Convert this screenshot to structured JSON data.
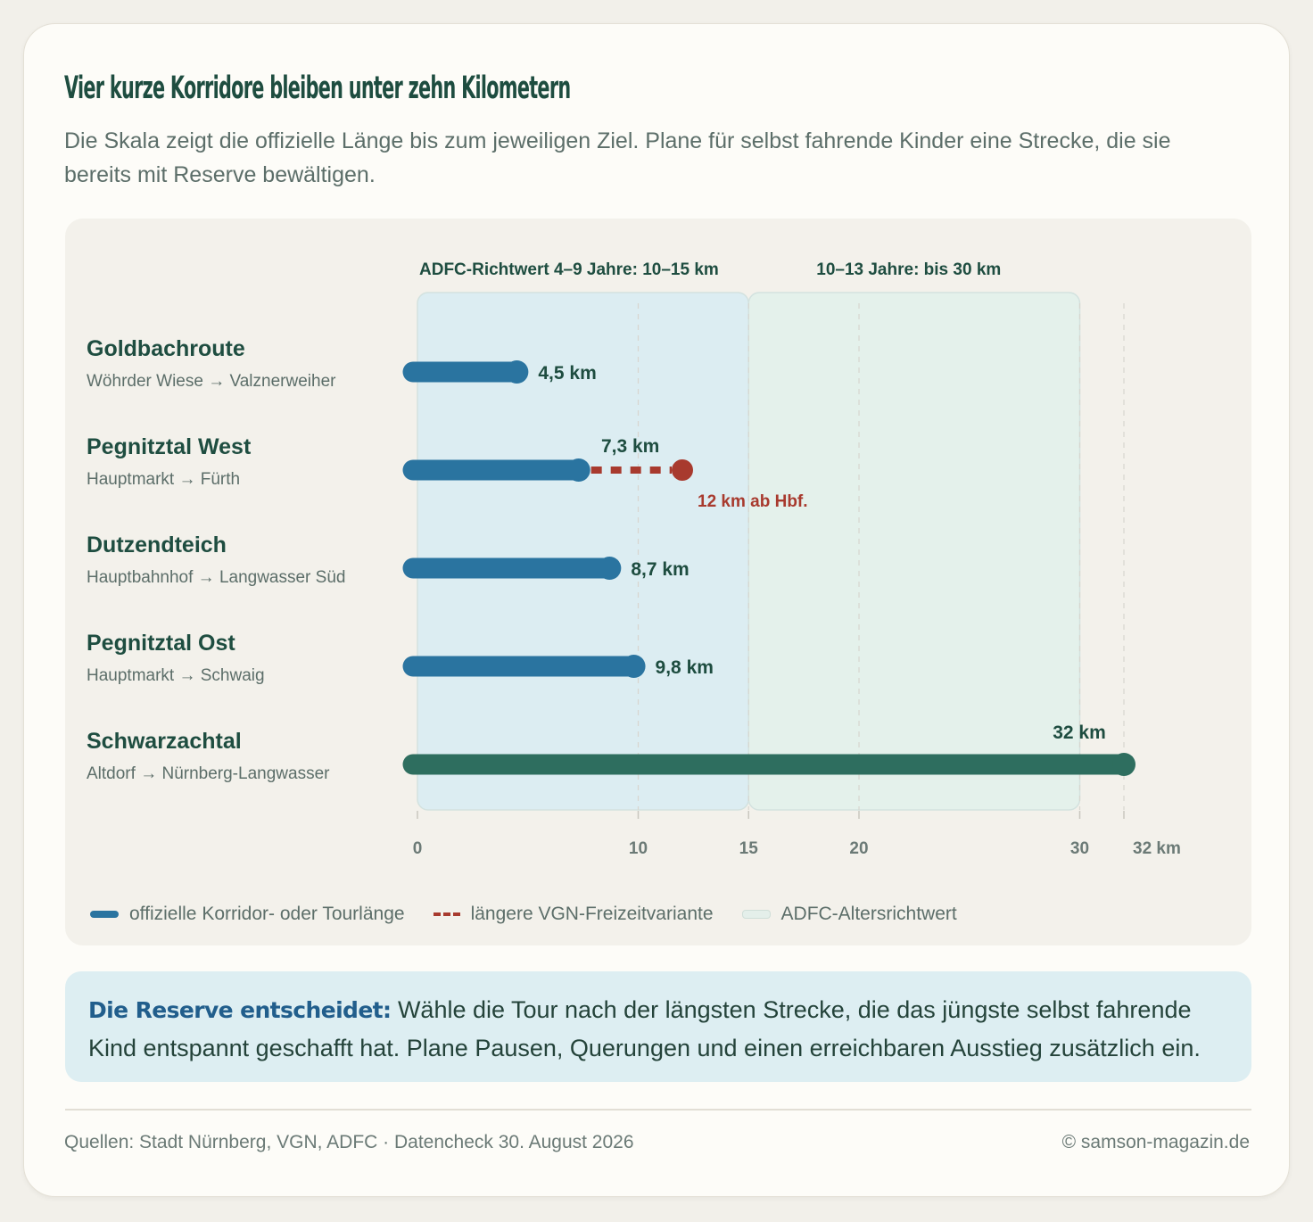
{
  "title": "Vier kurze Korridore bleiben unter zehn Kilometern",
  "subtitle": "Die Skala zeigt die offizielle Länge bis zum jeweiligen Ziel. Plane für selbst fahrende Kinder eine Strecke, die sie bereits mit Reserve bewältigen.",
  "chart_data": {
    "type": "bar",
    "orientation": "horizontal",
    "unit": "km",
    "xlim": [
      0,
      32
    ],
    "ticks": [
      {
        "value": 0,
        "label": "0"
      },
      {
        "value": 10,
        "label": "10"
      },
      {
        "value": 15,
        "label": "15"
      },
      {
        "value": 20,
        "label": "20"
      },
      {
        "value": 30,
        "label": "30"
      },
      {
        "value": 32,
        "label": "32 km"
      }
    ],
    "bands": [
      {
        "from": 0,
        "to": 15,
        "label": "ADFC-Richtwert 4–9 Jahre: 10–15 km",
        "color": "#dcedf2"
      },
      {
        "from": 15,
        "to": 30,
        "label": "10–13 Jahre: bis 30 km",
        "color": "#e4f1eb"
      }
    ],
    "routes": [
      {
        "name": "Goldbachroute",
        "path": "Wöhrder Wiese → Valznerweiher",
        "value": 4.5,
        "label": "4,5 km",
        "color": "#2a74a0"
      },
      {
        "name": "Pegnitztal West",
        "path": "Hauptmarkt → Fürth",
        "value": 7.3,
        "label": "7,3 km",
        "color": "#2a74a0",
        "variant": {
          "value": 12,
          "label": "12 km ab Hbf.",
          "color": "#a83a2e"
        }
      },
      {
        "name": "Dutzendteich",
        "path": "Hauptbahnhof → Langwasser Süd",
        "value": 8.7,
        "label": "8,7 km",
        "color": "#2a74a0"
      },
      {
        "name": "Pegnitztal Ost",
        "path": "Hauptmarkt → Schwaig",
        "value": 9.8,
        "label": "9,8 km",
        "color": "#2a74a0"
      },
      {
        "name": "Schwarzachtal",
        "path": "Altdorf → Nürnberg-Langwasser",
        "value": 32,
        "label": "32 km",
        "color": "#2e6e5f"
      }
    ],
    "legend": {
      "official": "offizielle Korridor- oder Tourlänge",
      "variant": "längere VGN-Freizeitvariante",
      "band": "ADFC-Altersrichtwert"
    }
  },
  "note": {
    "lead": "Die Reserve entscheidet:",
    "text": " Wähle die Tour nach der längsten Strecke, die das jüngste selbst fahrende Kind entspannt geschafft hat. Plane Pausen, Querungen und einen erreichbaren Ausstieg zusätzlich ein."
  },
  "footer": {
    "sources": "Quellen: Stadt Nürnberg, VGN, ADFC · Datencheck 30. August 2026",
    "credit": "© samson-magazin.de"
  }
}
